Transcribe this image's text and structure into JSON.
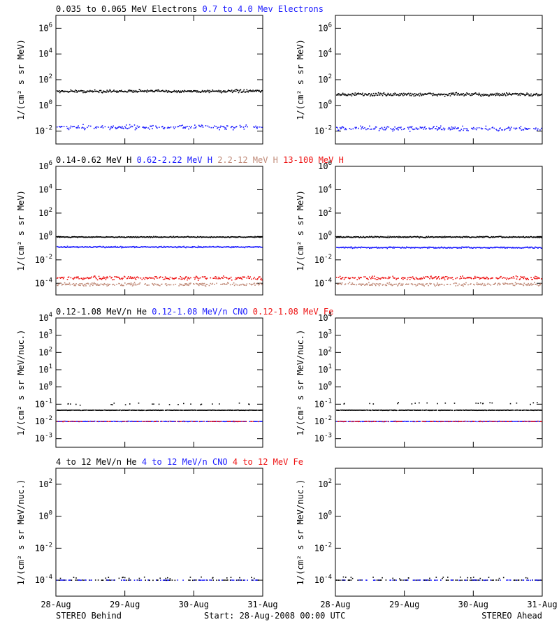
{
  "panels": [
    {
      "ylabel": "1/(cm² s sr MeV)",
      "ylim_exp": [
        -3,
        7
      ],
      "ticks": [
        -2,
        0,
        2,
        4,
        6
      ],
      "legend": [
        {
          "text": "0.035 to 0.065 MeV Electrons",
          "color": "#000000"
        },
        {
          "text": "0.7 to 4.0 Mev Electrons",
          "color": "#1c1cff"
        }
      ],
      "left_series": [
        {
          "name": "0.035 to 0.065 MeV Electrons",
          "color": "#000000",
          "level": 1.1,
          "scatter": 0.15,
          "drop": 0
        },
        {
          "name": "0.7 to 4.0 Mev Electrons",
          "color": "#1c1cff",
          "level": -1.7,
          "scatter": 0.25,
          "drop": 0.4
        }
      ],
      "right_series": [
        {
          "name": "0.035 to 0.065 MeV Electrons",
          "color": "#000000",
          "level": 0.85,
          "scatter": 0.18,
          "drop": 0
        },
        {
          "name": "0.7 to 4.0 Mev Electrons",
          "color": "#1c1cff",
          "level": -1.8,
          "scatter": 0.25,
          "drop": 0.4
        }
      ]
    },
    {
      "ylabel": "1/(cm² s sr MeV)",
      "ylim_exp": [
        -5,
        6
      ],
      "ticks": [
        -4,
        -2,
        0,
        2,
        4,
        6
      ],
      "legend": [
        {
          "text": "0.14-0.62 MeV H",
          "color": "#000000"
        },
        {
          "text": "0.62-2.22 MeV H",
          "color": "#1c1cff"
        },
        {
          "text": "2.2-12 MeV H",
          "color": "#c08a78"
        },
        {
          "text": "13-100 MeV H",
          "color": "#ee1111"
        }
      ],
      "left_series": [
        {
          "name": "0.14-0.62 MeV H",
          "color": "#000000",
          "level": -0.05,
          "scatter": 0.06,
          "drop": 0
        },
        {
          "name": "0.62-2.22 MeV H",
          "color": "#1c1cff",
          "level": -0.9,
          "scatter": 0.08,
          "drop": 0
        },
        {
          "name": "2.2-12 MeV H",
          "color": "#c08a78",
          "level": -4.1,
          "scatter": 0.2,
          "drop": 0.3
        },
        {
          "name": "13-100 MeV H",
          "color": "#ee1111",
          "level": -3.55,
          "scatter": 0.22,
          "drop": 0.3
        }
      ],
      "right_series": [
        {
          "name": "0.14-0.62 MeV H",
          "color": "#000000",
          "level": -0.05,
          "scatter": 0.08,
          "drop": 0
        },
        {
          "name": "0.62-2.22 MeV H",
          "color": "#1c1cff",
          "level": -0.95,
          "scatter": 0.08,
          "drop": 0
        },
        {
          "name": "2.2-12 MeV H",
          "color": "#c08a78",
          "level": -4.1,
          "scatter": 0.2,
          "drop": 0.3
        },
        {
          "name": "13-100 MeV H",
          "color": "#ee1111",
          "level": -3.55,
          "scatter": 0.22,
          "drop": 0.3
        }
      ]
    },
    {
      "ylabel": "1/(cm² s sr MeV/nuc.)",
      "ylim_exp": [
        -3.5,
        4
      ],
      "ticks": [
        -3,
        -2,
        -1,
        0,
        1,
        2,
        3,
        4
      ],
      "legend": [
        {
          "text": "0.12-1.08 MeV/n He",
          "color": "#000000"
        },
        {
          "text": "0.12-1.08 MeV/n CNO",
          "color": "#1c1cff"
        },
        {
          "text": "0.12-1.08 MeV Fe",
          "color": "#ee1111"
        }
      ],
      "left_series": [
        {
          "name": "0.12-1.08 MeV/n He",
          "color": "#000000",
          "level": -1.35,
          "scatter": 0.02,
          "drop": 0.1,
          "outliers": -1.0
        },
        {
          "name": "0.12-1.08 MeV/n CNO",
          "color": "#1c1cff",
          "level": -2.0,
          "scatter": 0.02,
          "drop": 0.2
        },
        {
          "name": "0.12-1.08 MeV Fe",
          "color": "#ee1111",
          "level": -2.0,
          "scatter": 0.02,
          "drop": 0.7
        }
      ],
      "right_series": [
        {
          "name": "0.12-1.08 MeV/n He",
          "color": "#000000",
          "level": -1.35,
          "scatter": 0.02,
          "drop": 0.1,
          "outliers": -0.95
        },
        {
          "name": "0.12-1.08 MeV/n CNO",
          "color": "#1c1cff",
          "level": -2.0,
          "scatter": 0.02,
          "drop": 0.2
        },
        {
          "name": "0.12-1.08 MeV Fe",
          "color": "#ee1111",
          "level": -2.0,
          "scatter": 0.02,
          "drop": 0.7
        }
      ]
    },
    {
      "ylabel": "1/(cm² s sr MeV/nuc.)",
      "ylim_exp": [
        -5,
        3
      ],
      "ticks": [
        -4,
        -2,
        0,
        2
      ],
      "legend": [
        {
          "text": "4 to 12 MeV/n He",
          "color": "#000000"
        },
        {
          "text": "4 to 12 MeV/n CNO",
          "color": "#1c1cff"
        },
        {
          "text": "4 to 12 MeV Fe",
          "color": "#ee1111"
        }
      ],
      "left_series": [
        {
          "name": "4 to 12 MeV/n He",
          "color": "#000000",
          "level": -4.0,
          "scatter": 0.01,
          "drop": 0.75,
          "outliers": -3.85
        },
        {
          "name": "4 to 12 MeV/n CNO",
          "color": "#1c1cff",
          "level": -4.0,
          "scatter": 0.01,
          "drop": 0.8
        }
      ],
      "right_series": [
        {
          "name": "4 to 12 MeV/n He",
          "color": "#000000",
          "level": -4.0,
          "scatter": 0.01,
          "drop": 0.75,
          "outliers": -3.85
        },
        {
          "name": "4 to 12 MeV/n CNO",
          "color": "#1c1cff",
          "level": -4.0,
          "scatter": 0.01,
          "drop": 0.8
        }
      ]
    }
  ],
  "xticks": [
    "28-Aug",
    "29-Aug",
    "30-Aug",
    "31-Aug"
  ],
  "footer": {
    "left": "STEREO Behind",
    "center": "Start: 28-Aug-2008 00:00 UTC",
    "right": "STEREO Ahead"
  },
  "chart_data": {
    "type": "scatter",
    "x_range": [
      "28-Aug-2008 00:00",
      "31-Aug-2008 00:00"
    ],
    "yscale": "log",
    "spacecraft": [
      "STEREO Behind",
      "STEREO Ahead"
    ],
    "notes_levels_are_log10_flux": true
  }
}
